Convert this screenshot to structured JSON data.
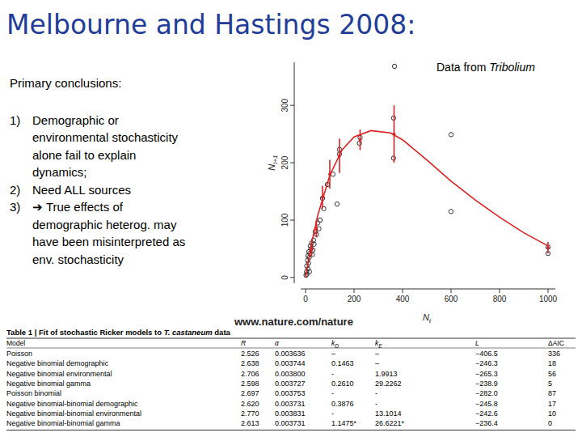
{
  "slide": {
    "title": "Melbourne and Hastings 2008:",
    "note": [
      "Data from ",
      "Tribolium"
    ],
    "conclusions": {
      "heading": "Primary conclusions:",
      "items": [
        {
          "num": "1)",
          "text": "Demographic or environmental stochasticity alone fail to explain dynamics;"
        },
        {
          "num": "2)",
          "text": "Need ALL sources"
        },
        {
          "num": "3)",
          "text": "➔ True effects of demographic heterog. may have been misinterpreted as env. stochasticity"
        }
      ]
    },
    "url": "www.nature.com/nature",
    "table": {
      "caption": [
        "Table 1 | Fit of stochastic Ricker models to ",
        "T. castaneum",
        " data"
      ],
      "columns": [
        {
          "text": "Model"
        },
        {
          "text": "R"
        },
        {
          "text": "α"
        },
        {
          "text": "k",
          "sub": "D"
        },
        {
          "text": "k",
          "sub": "E"
        },
        {
          "text": "L"
        },
        {
          "text": "ΔAIC"
        }
      ],
      "rows": [
        [
          "Poisson",
          "2.526",
          "0.003636",
          "–",
          "–",
          "−406.5",
          "336"
        ],
        [
          "Negative binomial demographic",
          "2.638",
          "0.003744",
          "0.1463",
          "–",
          "−246.3",
          "18"
        ],
        [
          "Negative binomial environmental",
          "2.706",
          "0.003800",
          "-",
          "1.9913",
          "−265.3",
          "56"
        ],
        [
          "Negative binomial gamma",
          "2.598",
          "0.003727",
          "0.2610",
          "29.2262",
          "−238.9",
          "5"
        ],
        [
          "Poisson binomial",
          "2.697",
          "0.003753",
          "-",
          "-",
          "−282.0",
          "87"
        ],
        [
          "Negative binomial-binomial demographic",
          "2.620",
          "0.003731",
          "0.3876",
          "-",
          "−245.8",
          "17"
        ],
        [
          "Negative binomial-binomial environmental",
          "2.770",
          "0.003831",
          "-",
          "13.1014",
          "−242.6",
          "10"
        ],
        [
          "Negative binomial-binomial gamma",
          "2.613",
          "0.003731",
          "1.1475*",
          "26.6221*",
          "−236.4",
          "0"
        ]
      ]
    }
  },
  "chart_data": {
    "type": "scatter",
    "x_label": {
      "text": "N",
      "sub": "t"
    },
    "y_label": {
      "text": "N",
      "sub": "t+1"
    },
    "xlim": [
      -20,
      1030
    ],
    "ylim": [
      -10,
      375
    ],
    "xticks": [
      0,
      200,
      400,
      600,
      800,
      1000
    ],
    "yticks": [
      0,
      100,
      200,
      300
    ],
    "grid": false,
    "series": [
      {
        "type": "scatter",
        "marker": "circle",
        "color": "#333333",
        "x": [
          2,
          4,
          5,
          6,
          8,
          10,
          10,
          12,
          14,
          15,
          16,
          18,
          20,
          22,
          25,
          28,
          30,
          33,
          35,
          40,
          45,
          50,
          55,
          60,
          70,
          75,
          90,
          113,
          130,
          140,
          140,
          222,
          225,
          363,
          363,
          600,
          600,
          1000,
          1000,
          367
        ],
        "values": [
          4,
          10,
          20,
          6,
          30,
          15,
          38,
          25,
          45,
          35,
          10,
          42,
          55,
          50,
          60,
          40,
          48,
          65,
          58,
          80,
          75,
          95,
          85,
          100,
          138,
          120,
          162,
          180,
          128,
          215,
          223,
          234,
          244,
          278,
          208,
          249,
          115,
          53,
          42,
          368
        ]
      },
      {
        "type": "errorbar",
        "marker": "dot",
        "color": "#d9232a",
        "x": [
          25,
          45,
          70,
          100,
          140,
          225,
          365,
          1000
        ],
        "values": [
          50,
          85,
          140,
          180,
          212,
          240,
          250,
          52
        ],
        "errors": [
          12,
          15,
          20,
          25,
          30,
          18,
          50,
          10
        ]
      },
      {
        "type": "line",
        "line_style": "solid",
        "color": "#e0201f",
        "x": [
          0,
          25,
          50,
          100,
          150,
          200,
          270,
          350,
          400,
          500,
          600,
          700,
          800,
          900,
          1000
        ],
        "values": [
          0,
          60,
          108,
          178,
          222,
          245,
          256,
          252,
          240,
          205,
          168,
          135,
          105,
          78,
          55
        ]
      }
    ]
  }
}
